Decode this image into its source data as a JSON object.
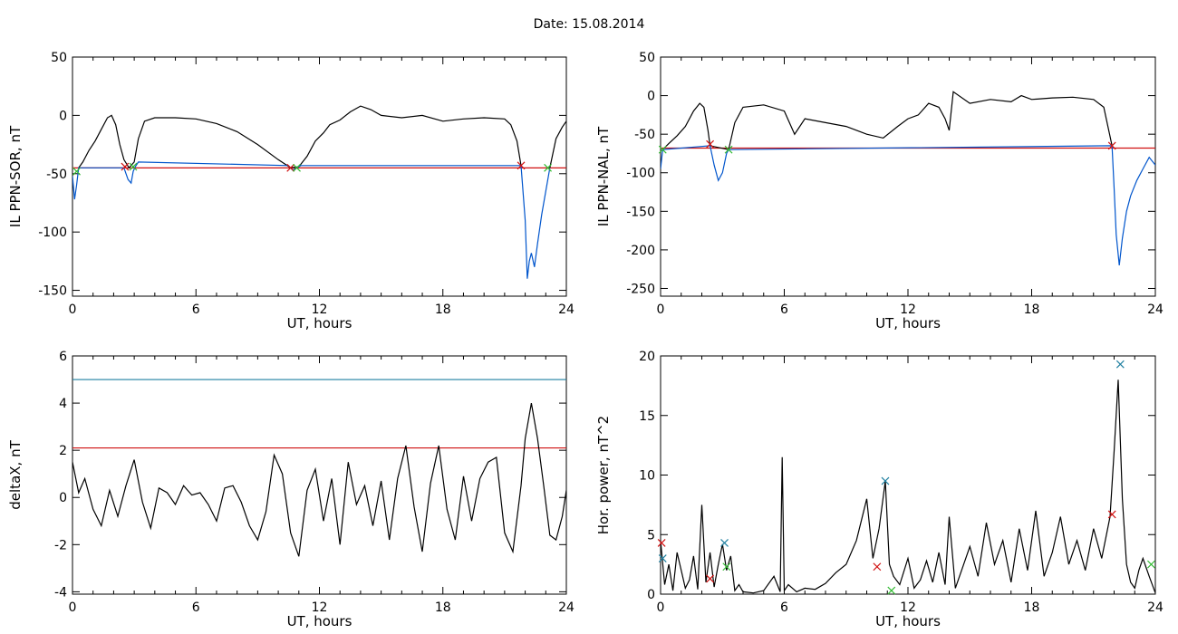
{
  "title": "Date:  15.08.2014",
  "colors": {
    "data": "#000000",
    "substorm": "#0055cc",
    "threshold_red": "#d01010",
    "threshold_cyan": "#1f7fa0",
    "mark_green": "#33bb33"
  },
  "chart_data": [
    {
      "id": "il-ppn-sor",
      "type": "line",
      "xlabel": "UT, hours",
      "ylabel": "IL PPN-SOR, nT",
      "xlim": [
        0,
        24
      ],
      "ylim": [
        -155,
        50
      ],
      "xticks": [
        "0",
        "6",
        "12",
        "18",
        "24"
      ],
      "yticks": [
        "50",
        "0",
        "-50",
        "-100",
        "-150"
      ],
      "ytick_values": [
        50,
        0,
        -50,
        -100,
        -150
      ],
      "series": [
        {
          "color": "#000000",
          "x": [
            0.3,
            0.5,
            0.8,
            1.1,
            1.4,
            1.7,
            1.9,
            2.1,
            2.3,
            2.5,
            2.75,
            3.0,
            3.2,
            3.5,
            4.0,
            5.0,
            6.0,
            7.0,
            8.0,
            9.0,
            10.0,
            10.6,
            11.0,
            11.4,
            11.8,
            12.2,
            12.5,
            13.0,
            13.5,
            14.0,
            14.5,
            15.0,
            16.0,
            17.0,
            18.0,
            19.0,
            20.0,
            21.0,
            21.3,
            21.6,
            21.8
          ],
          "y": [
            -45,
            -40,
            -30,
            -22,
            -12,
            -2,
            0,
            -8,
            -25,
            -38,
            -45,
            -40,
            -20,
            -5,
            -2,
            -2,
            -3,
            -7,
            -14,
            -25,
            -38,
            -45,
            -44,
            -35,
            -22,
            -15,
            -8,
            -4,
            3,
            8,
            5,
            0,
            -2,
            0,
            -5,
            -3,
            -2,
            -3,
            -8,
            -22,
            -43
          ]
        },
        {
          "color": "#0055cc",
          "x": [
            0,
            0.1,
            0.2,
            0.3,
            2.5,
            2.7,
            2.85,
            2.95,
            3.05,
            3.2,
            10.5,
            10.7,
            10.9,
            11.1,
            21.8,
            22.0,
            22.1,
            22.2,
            22.3,
            22.45,
            22.6,
            22.8,
            23.0,
            23.2
          ],
          "y": [
            -52,
            -72,
            -60,
            -45,
            -45,
            -55,
            -58,
            -48,
            -44,
            -40,
            -43,
            -47,
            -45,
            -43,
            -43,
            -90,
            -140,
            -125,
            -118,
            -130,
            -110,
            -85,
            -65,
            -45
          ]
        },
        {
          "color": "#000000",
          "x": [
            23.2,
            23.5,
            23.8,
            24.0
          ],
          "y": [
            -45,
            -20,
            -10,
            -5
          ]
        }
      ],
      "thresholds": [
        {
          "y": -45,
          "color": "#d01010"
        }
      ],
      "markers": [
        {
          "x": 0.2,
          "y": -48,
          "color": "#33bb33"
        },
        {
          "x": 2.55,
          "y": -44,
          "color": "#d01010"
        },
        {
          "x": 2.95,
          "y": -44,
          "color": "#33bb33"
        },
        {
          "x": 10.6,
          "y": -45,
          "color": "#d01010"
        },
        {
          "x": 10.9,
          "y": -45,
          "color": "#33bb33"
        },
        {
          "x": 21.8,
          "y": -43,
          "color": "#d01010"
        },
        {
          "x": 23.1,
          "y": -45,
          "color": "#33bb33"
        }
      ]
    },
    {
      "id": "il-ppn-nal",
      "type": "line",
      "xlabel": "UT, hours",
      "ylabel": "IL PPN-NAL, nT",
      "xlim": [
        0,
        24
      ],
      "ylim": [
        -260,
        50
      ],
      "xticks": [
        "0",
        "6",
        "12",
        "18",
        "24"
      ],
      "yticks": [
        "50",
        "0",
        "-50",
        "-100",
        "-150",
        "-200",
        "-250"
      ],
      "ytick_values": [
        50,
        0,
        -50,
        -100,
        -150,
        -200,
        -250
      ],
      "series": [
        {
          "color": "#000000",
          "x": [
            0.1,
            0.4,
            0.8,
            1.2,
            1.6,
            1.9,
            2.1,
            2.3,
            2.4,
            3.3,
            3.6,
            4.0,
            5.0,
            6.0,
            6.5,
            7.0,
            8.0,
            9.0,
            10.0,
            10.8,
            11.5,
            12.0,
            12.5,
            13.0,
            13.5,
            13.8,
            14.0,
            14.2,
            15.0,
            16.0,
            17.0,
            17.5,
            18.0,
            19.0,
            20.0,
            21.0,
            21.5,
            21.9
          ],
          "y": [
            -70,
            -62,
            -52,
            -40,
            -20,
            -10,
            -15,
            -45,
            -65,
            -70,
            -35,
            -15,
            -12,
            -20,
            -50,
            -30,
            -35,
            -40,
            -50,
            -55,
            -40,
            -30,
            -25,
            -10,
            -15,
            -30,
            -45,
            5,
            -10,
            -5,
            -8,
            0,
            -5,
            -3,
            -2,
            -5,
            -15,
            -65
          ]
        },
        {
          "color": "#0055cc",
          "x": [
            0,
            0.1,
            2.4,
            2.6,
            2.8,
            3.0,
            3.2,
            3.3,
            21.9,
            22.0,
            22.1,
            22.25,
            22.4,
            22.6,
            22.8,
            23.1,
            23.4,
            23.7,
            24.0
          ],
          "y": [
            -95,
            -70,
            -65,
            -90,
            -110,
            -100,
            -75,
            -70,
            -65,
            -120,
            -180,
            -220,
            -185,
            -150,
            -130,
            -110,
            -95,
            -80,
            -90
          ]
        }
      ],
      "thresholds": [
        {
          "y": -68,
          "color": "#d01010"
        }
      ],
      "markers": [
        {
          "x": 0.1,
          "y": -70,
          "color": "#33bb33"
        },
        {
          "x": 2.4,
          "y": -63,
          "color": "#d01010"
        },
        {
          "x": 3.3,
          "y": -70,
          "color": "#33bb33"
        },
        {
          "x": 21.9,
          "y": -65,
          "color": "#d01010"
        }
      ]
    },
    {
      "id": "deltax",
      "type": "line",
      "xlabel": "UT, hours",
      "ylabel": "deltaX, nT",
      "xlim": [
        0,
        24
      ],
      "ylim": [
        -4.1,
        6
      ],
      "xticks": [
        "0",
        "6",
        "12",
        "18",
        "24"
      ],
      "yticks": [
        "6",
        "4",
        "2",
        "0",
        "-2",
        "-4"
      ],
      "ytick_values": [
        6,
        4,
        2,
        0,
        -2,
        -4
      ],
      "series": [
        {
          "color": "#000000",
          "x": [
            0,
            0.3,
            0.6,
            1.0,
            1.4,
            1.8,
            2.2,
            2.6,
            3.0,
            3.4,
            3.8,
            4.2,
            4.6,
            5.0,
            5.4,
            5.8,
            6.2,
            6.6,
            7.0,
            7.4,
            7.8,
            8.2,
            8.6,
            9.0,
            9.4,
            9.8,
            10.2,
            10.6,
            11.0,
            11.4,
            11.8,
            12.2,
            12.6,
            13.0,
            13.4,
            13.8,
            14.2,
            14.6,
            15.0,
            15.4,
            15.8,
            16.2,
            16.6,
            17.0,
            17.4,
            17.8,
            18.2,
            18.6,
            19.0,
            19.4,
            19.8,
            20.2,
            20.6,
            21.0,
            21.4,
            21.8,
            22.0,
            22.3,
            22.6,
            22.9,
            23.2,
            23.5,
            23.8,
            24.0
          ],
          "y": [
            1.5,
            0.2,
            0.8,
            -0.5,
            -1.2,
            0.3,
            -0.8,
            0.5,
            1.6,
            -0.2,
            -1.3,
            0.4,
            0.2,
            -0.3,
            0.5,
            0.1,
            0.2,
            -0.3,
            -1.0,
            0.4,
            0.5,
            -0.2,
            -1.2,
            -1.8,
            -0.6,
            1.8,
            1.0,
            -1.5,
            -2.5,
            0.3,
            1.2,
            -1.0,
            0.8,
            -2.0,
            1.5,
            -0.3,
            0.5,
            -1.2,
            0.7,
            -1.8,
            0.8,
            2.2,
            -0.4,
            -2.3,
            0.6,
            2.2,
            -0.5,
            -1.8,
            0.9,
            -1.0,
            0.8,
            1.5,
            1.7,
            -1.5,
            -2.3,
            0.5,
            2.5,
            4.0,
            2.5,
            0.5,
            -1.6,
            -1.8,
            -0.8,
            0.3
          ]
        }
      ],
      "thresholds": [
        {
          "y": 5.0,
          "color": "#1f7fa0"
        },
        {
          "y": 2.1,
          "color": "#d01010"
        }
      ],
      "markers": []
    },
    {
      "id": "hor-power",
      "type": "line",
      "xlabel": "UT, hours",
      "ylabel": "Hor. power, nT^2",
      "xlim": [
        0,
        24
      ],
      "ylim": [
        0,
        20
      ],
      "xticks": [
        "0",
        "6",
        "12",
        "18",
        "24"
      ],
      "yticks": [
        "20",
        "15",
        "10",
        "5",
        "0"
      ],
      "ytick_values": [
        20,
        15,
        10,
        5,
        0
      ],
      "series": [
        {
          "color": "#000000",
          "x": [
            0,
            0.2,
            0.4,
            0.6,
            0.8,
            1.0,
            1.2,
            1.4,
            1.6,
            1.8,
            2.0,
            2.2,
            2.4,
            2.6,
            2.8,
            3.0,
            3.2,
            3.4,
            3.6,
            3.8,
            4.0,
            4.5,
            5.0,
            5.5,
            5.8,
            5.9,
            6.0,
            6.2,
            6.6,
            7.0,
            7.5,
            8.0,
            8.5,
            9.0,
            9.5,
            10.0,
            10.3,
            10.6,
            10.9,
            11.1,
            11.3,
            11.6,
            12.0,
            12.3,
            12.6,
            12.9,
            13.2,
            13.5,
            13.8,
            14.0,
            14.3,
            14.6,
            15.0,
            15.4,
            15.8,
            16.2,
            16.6,
            17.0,
            17.4,
            17.8,
            18.2,
            18.6,
            19.0,
            19.4,
            19.8,
            20.2,
            20.6,
            21.0,
            21.4,
            21.8,
            22.0,
            22.2,
            22.4,
            22.6,
            22.8,
            23.0,
            23.2,
            23.4,
            23.7,
            24.0
          ],
          "y": [
            4.5,
            0.8,
            2.5,
            0.3,
            3.5,
            2.0,
            0.5,
            1.2,
            3.2,
            0.4,
            7.5,
            1.0,
            3.5,
            0.6,
            2.5,
            4.2,
            2.0,
            3.2,
            0.3,
            0.8,
            0.2,
            0.1,
            0.3,
            1.5,
            0.2,
            11.5,
            0.3,
            0.8,
            0.2,
            0.5,
            0.4,
            0.9,
            1.8,
            2.5,
            4.5,
            8.0,
            3.0,
            5.5,
            9.5,
            2.5,
            1.5,
            0.8,
            3.0,
            0.5,
            1.2,
            2.8,
            1.0,
            3.5,
            0.8,
            6.5,
            0.5,
            2.0,
            4.0,
            1.5,
            6.0,
            2.5,
            4.5,
            1.0,
            5.5,
            2.0,
            7.0,
            1.5,
            3.5,
            6.5,
            2.5,
            4.5,
            2.0,
            5.5,
            3.0,
            6.5,
            12.0,
            18.0,
            8.0,
            2.5,
            1.0,
            0.5,
            2.0,
            3.0,
            1.5,
            0.1
          ]
        }
      ],
      "thresholds": [],
      "markers": [
        {
          "x": 0.05,
          "y": 4.3,
          "color": "#d01010"
        },
        {
          "x": 0.1,
          "y": 3.0,
          "color": "#1f7fa0"
        },
        {
          "x": 2.4,
          "y": 1.3,
          "color": "#d01010"
        },
        {
          "x": 3.1,
          "y": 4.3,
          "color": "#1f7fa0"
        },
        {
          "x": 3.2,
          "y": 2.3,
          "color": "#33bb33"
        },
        {
          "x": 10.5,
          "y": 2.3,
          "color": "#d01010"
        },
        {
          "x": 10.9,
          "y": 9.5,
          "color": "#1f7fa0"
        },
        {
          "x": 11.2,
          "y": 0.3,
          "color": "#33bb33"
        },
        {
          "x": 21.9,
          "y": 6.7,
          "color": "#d01010"
        },
        {
          "x": 22.3,
          "y": 19.3,
          "color": "#1f7fa0"
        },
        {
          "x": 23.8,
          "y": 2.5,
          "color": "#33bb33"
        }
      ]
    }
  ]
}
